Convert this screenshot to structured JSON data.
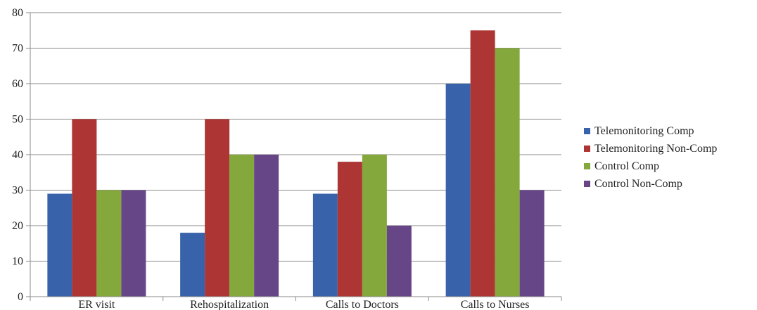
{
  "chart_data": {
    "type": "bar",
    "categories": [
      "ER visit",
      "Rehospitalization",
      "Calls to Doctors",
      "Calls to Nurses"
    ],
    "series": [
      {
        "name": "Telemonitoring Comp",
        "color": "#3862a9",
        "values": [
          29,
          18,
          29,
          60
        ]
      },
      {
        "name": "Telemonitoring Non-Comp",
        "color": "#ad3634",
        "values": [
          50,
          50,
          38,
          75
        ]
      },
      {
        "name": "Control Comp",
        "color": "#84a83c",
        "values": [
          30,
          40,
          40,
          70
        ]
      },
      {
        "name": "Control Non-Comp",
        "color": "#664686",
        "values": [
          30,
          40,
          20,
          30
        ]
      }
    ],
    "ylim": [
      0,
      80
    ],
    "yticks": [
      0,
      10,
      20,
      30,
      40,
      50,
      60,
      70,
      80
    ],
    "grid": true,
    "legend_position": "right"
  }
}
